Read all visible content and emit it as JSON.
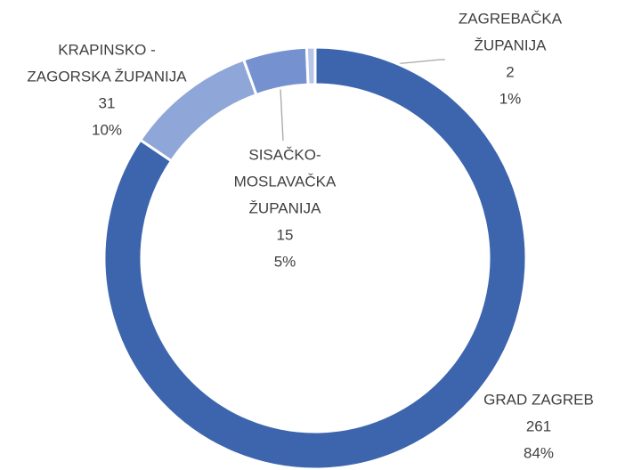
{
  "chart_data": {
    "type": "donut",
    "categories": [
      [
        "GRAD ZAGREB"
      ],
      [
        "KRAPINSKO -",
        "ZAGORSKA ŽUPANIJA"
      ],
      [
        "SISAČKO-",
        "MOSLAVAČKA",
        "ŽUPANIJA"
      ],
      [
        "ZAGREBAČKA",
        "ŽUPANIJA"
      ]
    ],
    "series": [
      {
        "values": [
          261,
          31,
          15,
          2
        ],
        "colors": [
          "#3d65ae",
          "#8fa6d8",
          "#7591d0",
          "#b7c6e8"
        ]
      }
    ],
    "percents": [
      84,
      10,
      5,
      1
    ],
    "percent_labels": [
      "84%",
      "10%",
      "5%",
      "1%"
    ]
  }
}
